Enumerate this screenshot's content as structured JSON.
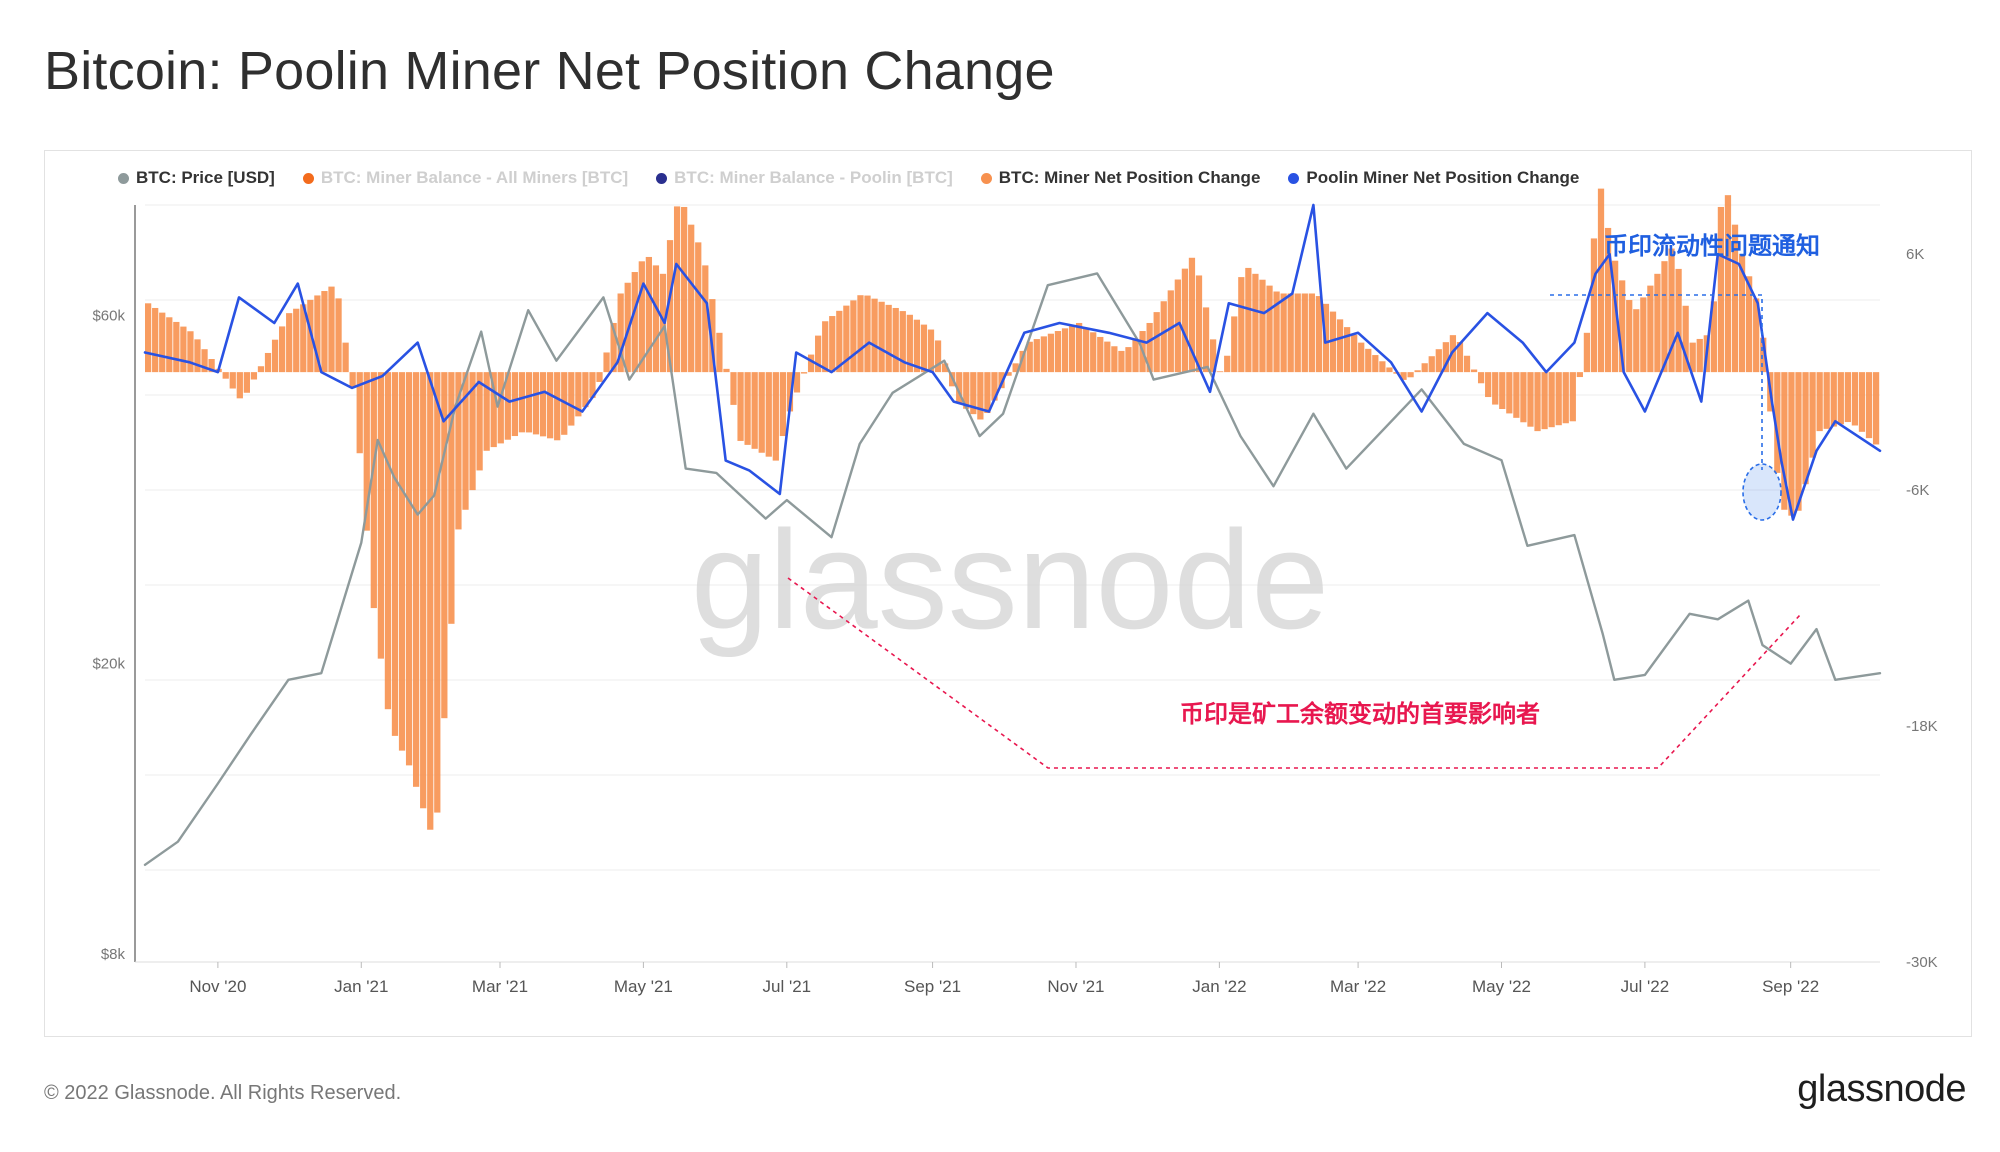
{
  "page": {
    "title": "Bitcoin: Poolin Miner Net Position Change",
    "copyright": "© 2022 Glassnode. All Rights Reserved.",
    "logo": "glassnode",
    "watermark": "glassnode"
  },
  "legend": [
    {
      "label": "BTC: Price [USD]",
      "color": "#8e9a9b",
      "dim": false
    },
    {
      "label": "BTC: Miner Balance - All Miners [BTC]",
      "color": "#f36b1c",
      "dim": true
    },
    {
      "label": "BTC: Miner Balance - Poolin [BTC]",
      "color": "#2a2f8f",
      "dim": true
    },
    {
      "label": "BTC: Miner Net Position Change",
      "color": "#f7914f",
      "dim": false
    },
    {
      "label": "Poolin Miner Net Position Change",
      "color": "#2952e3",
      "dim": false
    }
  ],
  "annotations": {
    "liquidity_notice": "币印流动性问题通知",
    "main_driver": "币印是矿工余额变动的首要影响者"
  },
  "chart_data": {
    "type": "line",
    "x_range": [
      "2020-10-01",
      "2022-10-09"
    ],
    "x_ticks": [
      "Nov '20",
      "Jan '21",
      "Mar '21",
      "May '21",
      "Jul '21",
      "Sep '21",
      "Nov '21",
      "Jan '22",
      "Mar '22",
      "May '22",
      "Jul '22",
      "Sep '22"
    ],
    "y_left": {
      "scale": "log",
      "range": [
        7800,
        85000
      ],
      "ticks": [
        "$8k",
        "$20k",
        "$60k"
      ]
    },
    "y_right": {
      "range": [
        -30000,
        8500
      ],
      "ticks": [
        "6K",
        "-6K",
        "-18K",
        "-30K"
      ]
    },
    "series": [
      {
        "name": "BTC: Price [USD]",
        "axis": "left",
        "color": "#8e9a9b",
        "points": [
          [
            "2020-10-01",
            10600
          ],
          [
            "2020-10-15",
            11400
          ],
          [
            "2020-11-01",
            13700
          ],
          [
            "2020-11-15",
            16000
          ],
          [
            "2020-12-01",
            19000
          ],
          [
            "2020-12-15",
            19400
          ],
          [
            "2021-01-01",
            29300
          ],
          [
            "2021-01-08",
            40500
          ],
          [
            "2021-01-15",
            36000
          ],
          [
            "2021-01-25",
            32000
          ],
          [
            "2021-02-01",
            34000
          ],
          [
            "2021-02-10",
            45000
          ],
          [
            "2021-02-21",
            57000
          ],
          [
            "2021-02-28",
            45000
          ],
          [
            "2021-03-13",
            61000
          ],
          [
            "2021-03-25",
            52000
          ],
          [
            "2021-04-14",
            63500
          ],
          [
            "2021-04-25",
            49000
          ],
          [
            "2021-05-10",
            58000
          ],
          [
            "2021-05-19",
            37000
          ],
          [
            "2021-06-01",
            36500
          ],
          [
            "2021-06-22",
            31600
          ],
          [
            "2021-07-01",
            33500
          ],
          [
            "2021-07-20",
            29800
          ],
          [
            "2021-08-01",
            40000
          ],
          [
            "2021-08-15",
            47000
          ],
          [
            "2021-09-06",
            52000
          ],
          [
            "2021-09-21",
            41000
          ],
          [
            "2021-10-01",
            44000
          ],
          [
            "2021-10-20",
            66000
          ],
          [
            "2021-11-10",
            68500
          ],
          [
            "2021-11-28",
            55000
          ],
          [
            "2021-12-04",
            49000
          ],
          [
            "2021-12-27",
            51000
          ],
          [
            "2022-01-10",
            41000
          ],
          [
            "2022-01-24",
            35000
          ],
          [
            "2022-02-10",
            44000
          ],
          [
            "2022-02-24",
            37000
          ],
          [
            "2022-03-28",
            47500
          ],
          [
            "2022-04-15",
            40000
          ],
          [
            "2022-05-01",
            38000
          ],
          [
            "2022-05-12",
            29000
          ],
          [
            "2022-06-01",
            30000
          ],
          [
            "2022-06-13",
            22000
          ],
          [
            "2022-06-18",
            19000
          ],
          [
            "2022-07-01",
            19300
          ],
          [
            "2022-07-20",
            23400
          ],
          [
            "2022-08-01",
            23000
          ],
          [
            "2022-08-14",
            24400
          ],
          [
            "2022-08-20",
            21200
          ],
          [
            "2022-09-01",
            20000
          ],
          [
            "2022-09-12",
            22300
          ],
          [
            "2022-09-20",
            19000
          ],
          [
            "2022-10-09",
            19400
          ]
        ]
      },
      {
        "name": "BTC: Miner Net Position Change",
        "axis": "right",
        "color": "#f7914f",
        "points": [
          [
            "2020-10-01",
            3500
          ],
          [
            "2020-10-20",
            2000
          ],
          [
            "2020-11-10",
            -1500
          ],
          [
            "2020-11-30",
            3000
          ],
          [
            "2020-12-20",
            4500
          ],
          [
            "2020-12-28",
            -1500
          ],
          [
            "2021-01-05",
            -12000
          ],
          [
            "2021-01-12",
            -18000
          ],
          [
            "2021-01-20",
            -20000
          ],
          [
            "2021-01-31",
            -24000
          ],
          [
            "2021-02-10",
            -8000
          ],
          [
            "2021-02-22",
            -4000
          ],
          [
            "2021-03-10",
            -3000
          ],
          [
            "2021-03-25",
            -3500
          ],
          [
            "2021-04-10",
            -1000
          ],
          [
            "2021-04-20",
            4000
          ],
          [
            "2021-05-01",
            6000
          ],
          [
            "2021-05-08",
            5000
          ],
          [
            "2021-05-15",
            9000
          ],
          [
            "2021-05-25",
            6000
          ],
          [
            "2021-06-01",
            2000
          ],
          [
            "2021-06-10",
            -3500
          ],
          [
            "2021-06-25",
            -4500
          ],
          [
            "2021-07-01",
            -2000
          ],
          [
            "2021-07-15",
            2500
          ],
          [
            "2021-08-01",
            4000
          ],
          [
            "2021-08-20",
            3000
          ],
          [
            "2021-09-01",
            2000
          ],
          [
            "2021-09-10",
            -1500
          ],
          [
            "2021-09-21",
            -2500
          ],
          [
            "2021-10-10",
            1500
          ],
          [
            "2021-11-01",
            2500
          ],
          [
            "2021-11-20",
            1000
          ],
          [
            "2021-12-01",
            2500
          ],
          [
            "2021-12-20",
            6000
          ],
          [
            "2022-01-01",
            -500
          ],
          [
            "2022-01-10",
            5500
          ],
          [
            "2022-01-25",
            4000
          ],
          [
            "2022-02-10",
            4000
          ],
          [
            "2022-03-01",
            1500
          ],
          [
            "2022-03-20",
            -500
          ],
          [
            "2022-04-10",
            2000
          ],
          [
            "2022-04-25",
            -1500
          ],
          [
            "2022-05-15",
            -3000
          ],
          [
            "2022-05-30",
            -2500
          ],
          [
            "2022-06-05",
            2000
          ],
          [
            "2022-06-10",
            10000
          ],
          [
            "2022-06-16",
            6000
          ],
          [
            "2022-06-25",
            3000
          ],
          [
            "2022-07-05",
            5000
          ],
          [
            "2022-07-12",
            6500
          ],
          [
            "2022-07-20",
            1500
          ],
          [
            "2022-07-28",
            2000
          ],
          [
            "2022-08-02",
            10000
          ],
          [
            "2022-08-10",
            6000
          ],
          [
            "2022-08-18",
            3000
          ],
          [
            "2022-08-24",
            -4500
          ],
          [
            "2022-08-28",
            -7000
          ],
          [
            "2022-09-02",
            -7500
          ],
          [
            "2022-09-12",
            -3000
          ],
          [
            "2022-09-25",
            -2500
          ],
          [
            "2022-10-09",
            -4000
          ]
        ]
      },
      {
        "name": "Poolin Miner Net Position Change",
        "axis": "right",
        "color": "#2952e3",
        "points": [
          [
            "2020-10-01",
            1000
          ],
          [
            "2020-10-20",
            500
          ],
          [
            "2020-11-01",
            0
          ],
          [
            "2020-11-10",
            3800
          ],
          [
            "2020-11-25",
            2500
          ],
          [
            "2020-12-05",
            4500
          ],
          [
            "2020-12-15",
            0
          ],
          [
            "2020-12-28",
            -800
          ],
          [
            "2021-01-10",
            -200
          ],
          [
            "2021-01-25",
            1500
          ],
          [
            "2021-02-05",
            -2500
          ],
          [
            "2021-02-20",
            -500
          ],
          [
            "2021-03-05",
            -1500
          ],
          [
            "2021-03-20",
            -1000
          ],
          [
            "2021-04-05",
            -2000
          ],
          [
            "2021-04-20",
            500
          ],
          [
            "2021-05-01",
            4500
          ],
          [
            "2021-05-10",
            2500
          ],
          [
            "2021-05-15",
            5500
          ],
          [
            "2021-05-28",
            3500
          ],
          [
            "2021-06-05",
            -4500
          ],
          [
            "2021-06-15",
            -5000
          ],
          [
            "2021-06-28",
            -6200
          ],
          [
            "2021-07-05",
            1000
          ],
          [
            "2021-07-20",
            0
          ],
          [
            "2021-08-05",
            1500
          ],
          [
            "2021-08-20",
            500
          ],
          [
            "2021-09-01",
            0
          ],
          [
            "2021-09-10",
            -1500
          ],
          [
            "2021-09-25",
            -2000
          ],
          [
            "2021-10-10",
            2000
          ],
          [
            "2021-10-25",
            2500
          ],
          [
            "2021-11-15",
            2000
          ],
          [
            "2021-12-01",
            1500
          ],
          [
            "2021-12-15",
            2500
          ],
          [
            "2021-12-28",
            -1000
          ],
          [
            "2022-01-05",
            3500
          ],
          [
            "2022-01-20",
            3000
          ],
          [
            "2022-02-01",
            4000
          ],
          [
            "2022-02-10",
            8500
          ],
          [
            "2022-02-15",
            1500
          ],
          [
            "2022-03-01",
            2000
          ],
          [
            "2022-03-15",
            500
          ],
          [
            "2022-03-28",
            -2000
          ],
          [
            "2022-04-10",
            1000
          ],
          [
            "2022-04-25",
            3000
          ],
          [
            "2022-05-10",
            1500
          ],
          [
            "2022-05-20",
            0
          ],
          [
            "2022-06-01",
            1500
          ],
          [
            "2022-06-10",
            5000
          ],
          [
            "2022-06-16",
            6000
          ],
          [
            "2022-06-22",
            0
          ],
          [
            "2022-07-01",
            -2000
          ],
          [
            "2022-07-15",
            2000
          ],
          [
            "2022-07-25",
            -1500
          ],
          [
            "2022-08-01",
            6000
          ],
          [
            "2022-08-10",
            5500
          ],
          [
            "2022-08-18",
            3500
          ],
          [
            "2022-08-24",
            -1500
          ],
          [
            "2022-08-28",
            -4500
          ],
          [
            "2022-09-02",
            -7500
          ],
          [
            "2022-09-12",
            -4000
          ],
          [
            "2022-09-20",
            -2500
          ],
          [
            "2022-10-09",
            -4000
          ]
        ]
      }
    ]
  }
}
